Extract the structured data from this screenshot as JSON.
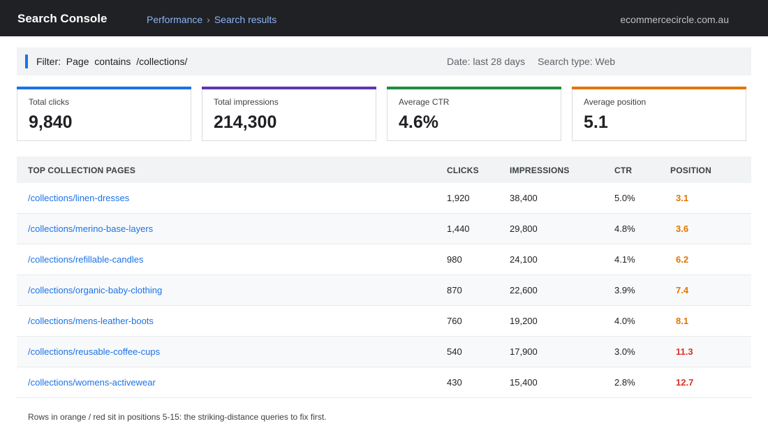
{
  "header": {
    "app_title": "Search Console",
    "breadcrumb": [
      "Performance",
      "Search results"
    ],
    "breadcrumb_separator": "›",
    "site": "ecommercecircle.com.au"
  },
  "filter": {
    "label": "Filter:",
    "field": "Page",
    "operator": "contains",
    "value": "/collections/",
    "date": "Date: last 28 days",
    "search_type": "Search type: Web"
  },
  "metrics": [
    {
      "label": "Total clicks",
      "value": "9,840",
      "color": "#1a73e8"
    },
    {
      "label": "Total impressions",
      "value": "214,300",
      "color": "#5e35b1"
    },
    {
      "label": "Average CTR",
      "value": "4.6%",
      "color": "#1e8e3e"
    },
    {
      "label": "Average position",
      "value": "5.1",
      "color": "#e37400"
    }
  ],
  "table": {
    "columns": [
      "TOP COLLECTION PAGES",
      "CLICKS",
      "IMPRESSIONS",
      "CTR",
      "POSITION"
    ],
    "rows": [
      {
        "page": "/collections/linen-dresses",
        "clicks": "1,920",
        "impressions": "38,400",
        "ctr": "5.0%",
        "position": "3.1",
        "position_color": "#e37400"
      },
      {
        "page": "/collections/merino-base-layers",
        "clicks": "1,440",
        "impressions": "29,800",
        "ctr": "4.8%",
        "position": "3.6",
        "position_color": "#e37400"
      },
      {
        "page": "/collections/refillable-candles",
        "clicks": "980",
        "impressions": "24,100",
        "ctr": "4.1%",
        "position": "6.2",
        "position_color": "#e37400"
      },
      {
        "page": "/collections/organic-baby-clothing",
        "clicks": "870",
        "impressions": "22,600",
        "ctr": "3.9%",
        "position": "7.4",
        "position_color": "#e37400"
      },
      {
        "page": "/collections/mens-leather-boots",
        "clicks": "760",
        "impressions": "19,200",
        "ctr": "4.0%",
        "position": "8.1",
        "position_color": "#e37400"
      },
      {
        "page": "/collections/reusable-coffee-cups",
        "clicks": "540",
        "impressions": "17,900",
        "ctr": "3.0%",
        "position": "11.3",
        "position_color": "#d93025"
      },
      {
        "page": "/collections/womens-activewear",
        "clicks": "430",
        "impressions": "15,400",
        "ctr": "2.8%",
        "position": "12.7",
        "position_color": "#d93025"
      }
    ]
  },
  "footnote": "Rows in orange / red sit in positions 5-15: the striking-distance queries to fix first."
}
